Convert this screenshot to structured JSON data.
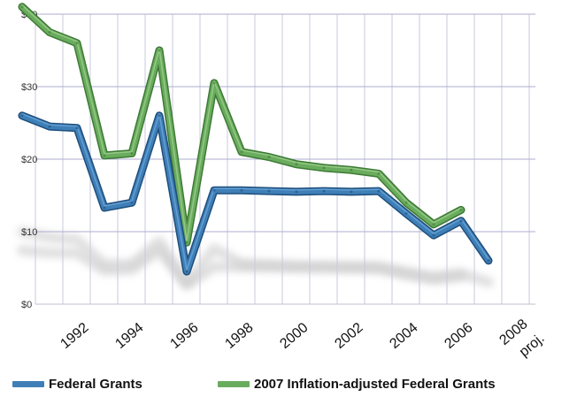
{
  "chart_data": {
    "type": "line",
    "x": [
      "1991",
      "1992",
      "1993",
      "1994",
      "1995",
      "1996",
      "1997",
      "1998",
      "1999",
      "2000",
      "2001",
      "2002",
      "2003",
      "2004",
      "2005",
      "2006",
      "2007",
      "2008 proj."
    ],
    "x_tick_labels": [
      "1992",
      "1994",
      "1996",
      "1998",
      "2000",
      "2002",
      "2004",
      "2006",
      "2008",
      "proj."
    ],
    "y_tick_labels": [
      "$0",
      "$10",
      "$20",
      "$30",
      "$40"
    ],
    "ylim": [
      0,
      40
    ],
    "grid": true,
    "legend_position": "bottom",
    "series": [
      {
        "name": "Federal Grants",
        "color": "#3f7fb7",
        "values": [
          26,
          24.5,
          24.3,
          13.3,
          14,
          26,
          4.5,
          15.7,
          15.7,
          15.6,
          15.5,
          15.6,
          15.5,
          15.6,
          12.5,
          9.5,
          11.5,
          6
        ]
      },
      {
        "name": "2007 Inflation-adjusted Federal Grants",
        "color": "#6aac5e",
        "values": [
          41,
          37.5,
          36,
          20.5,
          20.8,
          35,
          8.5,
          30.5,
          21,
          20.3,
          19.3,
          18.8,
          18.5,
          18,
          14,
          11,
          13,
          null
        ]
      }
    ]
  },
  "legend": {
    "federal": "Federal Grants",
    "inflation": "2007 Inflation-adjusted Federal Grants"
  }
}
